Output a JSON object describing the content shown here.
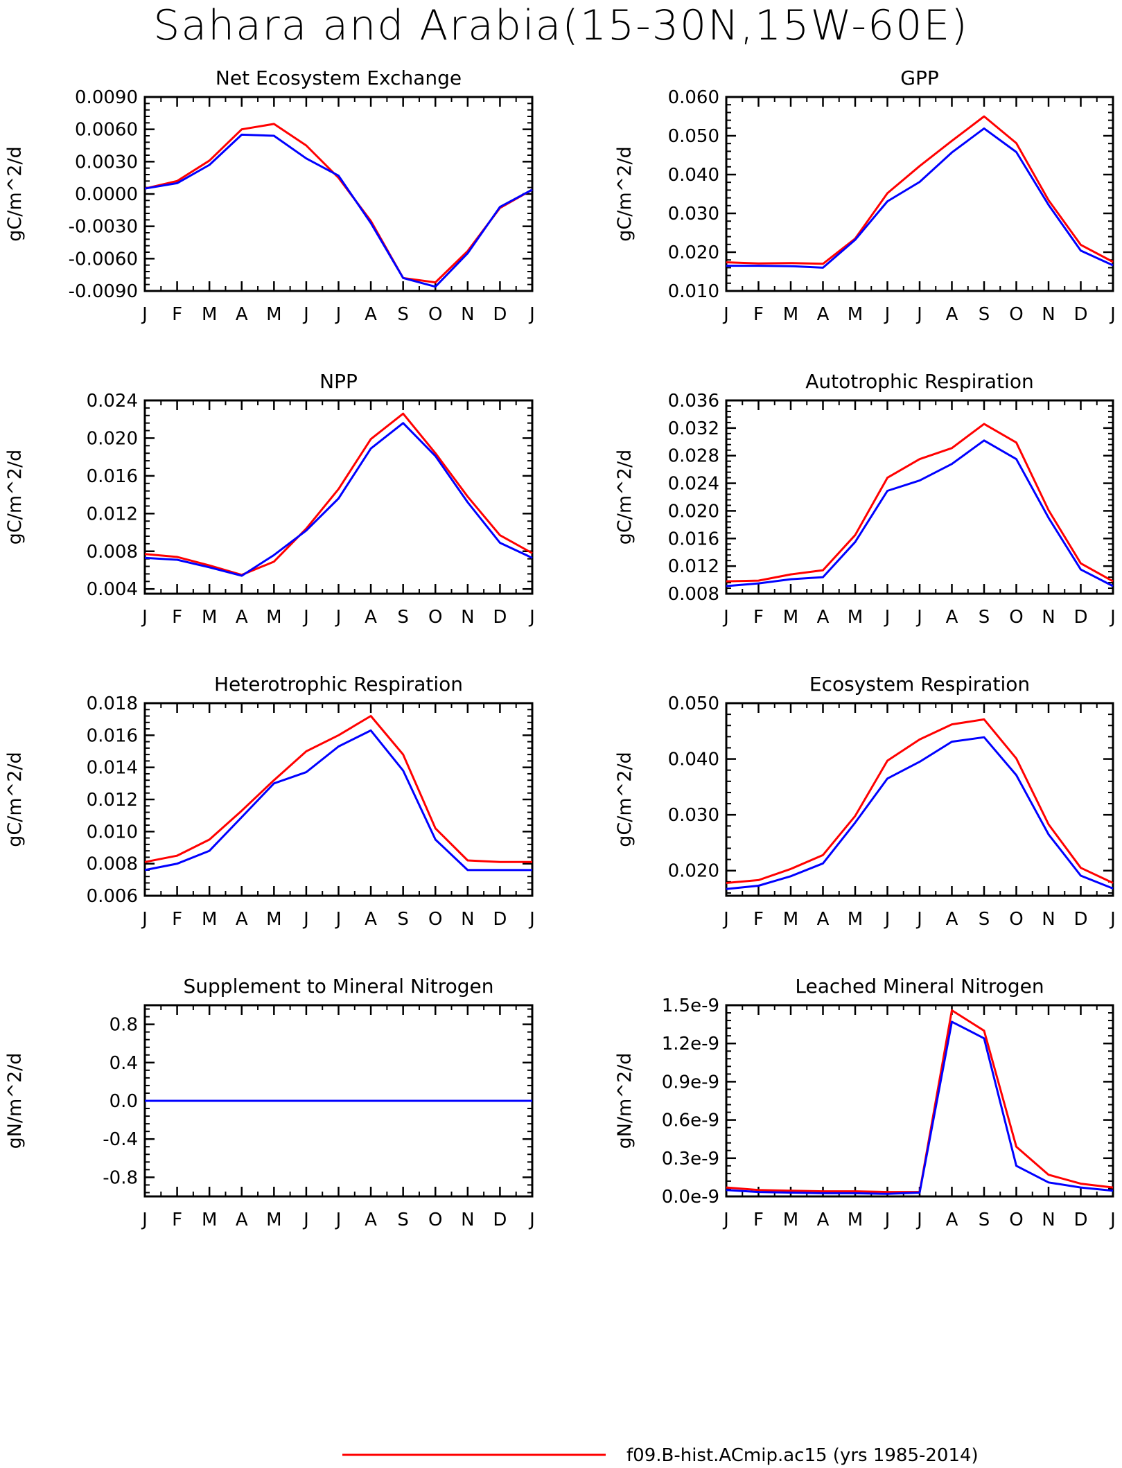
{
  "title": "Sahara and Arabia(15-30N,15W-60E)",
  "months": [
    "J",
    "F",
    "M",
    "A",
    "M",
    "J",
    "J",
    "A",
    "S",
    "O",
    "N",
    "D",
    "J"
  ],
  "legend": [
    {
      "label": "f09.B-hist.ACmip.ac15 (yrs 1985-2014)",
      "color": "#ff0000"
    }
  ],
  "chart_data": [
    {
      "type": "line",
      "title": "Net Ecosystem Exchange",
      "ylabel": "gC/m^2/d",
      "ylim": [
        -0.009,
        0.009
      ],
      "yticks": [
        -0.009,
        -0.006,
        -0.003,
        0.0,
        0.003,
        0.006,
        0.009
      ],
      "ytick_labels": [
        "-0.0090",
        "-0.0060",
        "-0.0030",
        "0.0000",
        "0.0030",
        "0.0060",
        "0.0090"
      ],
      "series": [
        {
          "color": "#ff0000",
          "values": [
            0.0005,
            0.0012,
            0.0031,
            0.006,
            0.0065,
            0.0045,
            0.0015,
            -0.0025,
            -0.0078,
            -0.0082,
            -0.0053,
            -0.0013,
            0.0004
          ]
        },
        {
          "color": "#0000ff",
          "values": [
            0.0005,
            0.001,
            0.0027,
            0.0055,
            0.0054,
            0.0033,
            0.0017,
            -0.0027,
            -0.0078,
            -0.0086,
            -0.0055,
            -0.0012,
            0.0004
          ]
        }
      ]
    },
    {
      "type": "line",
      "title": "GPP",
      "ylabel": "gC/m^2/d",
      "ylim": [
        0.01,
        0.06
      ],
      "yticks": [
        0.01,
        0.02,
        0.03,
        0.04,
        0.05,
        0.06
      ],
      "ytick_labels": [
        "0.010",
        "0.020",
        "0.030",
        "0.040",
        "0.050",
        "0.060"
      ],
      "series": [
        {
          "color": "#ff0000",
          "values": [
            0.0174,
            0.0171,
            0.0172,
            0.017,
            0.0235,
            0.0352,
            0.0422,
            0.0487,
            0.055,
            0.0481,
            0.0334,
            0.0219,
            0.0175
          ]
        },
        {
          "color": "#0000ff",
          "values": [
            0.0165,
            0.0165,
            0.0164,
            0.016,
            0.0232,
            0.0331,
            0.0381,
            0.0457,
            0.0519,
            0.0458,
            0.0322,
            0.0204,
            0.0166
          ]
        }
      ]
    },
    {
      "type": "line",
      "title": "NPP",
      "ylabel": "gC/m^2/d",
      "ylim": [
        0.0035,
        0.024
      ],
      "yticks": [
        0.004,
        0.008,
        0.012,
        0.016,
        0.02,
        0.024
      ],
      "ytick_labels": [
        "0.004",
        "0.008",
        "0.012",
        "0.016",
        "0.020",
        "0.024"
      ],
      "series": [
        {
          "color": "#ff0000",
          "values": [
            0.0077,
            0.0074,
            0.0065,
            0.0055,
            0.0069,
            0.0104,
            0.0146,
            0.0199,
            0.0226,
            0.0184,
            0.0138,
            0.0097,
            0.0078
          ]
        },
        {
          "color": "#0000ff",
          "values": [
            0.0073,
            0.0071,
            0.0063,
            0.0054,
            0.0076,
            0.0102,
            0.0136,
            0.0189,
            0.0216,
            0.0181,
            0.0132,
            0.0089,
            0.0073
          ]
        }
      ]
    },
    {
      "type": "line",
      "title": "Autotrophic Respiration",
      "ylabel": "gC/m^2/d",
      "ylim": [
        0.008,
        0.036
      ],
      "yticks": [
        0.008,
        0.012,
        0.016,
        0.02,
        0.024,
        0.028,
        0.032,
        0.036
      ],
      "ytick_labels": [
        "0.008",
        "0.012",
        "0.016",
        "0.020",
        "0.024",
        "0.028",
        "0.032",
        "0.036"
      ],
      "series": [
        {
          "color": "#ff0000",
          "values": [
            0.0098,
            0.0099,
            0.0108,
            0.0114,
            0.0165,
            0.0248,
            0.0275,
            0.0291,
            0.0326,
            0.0299,
            0.0201,
            0.0124,
            0.0098
          ]
        },
        {
          "color": "#0000ff",
          "values": [
            0.0091,
            0.0095,
            0.0101,
            0.0104,
            0.0155,
            0.0229,
            0.0244,
            0.0268,
            0.0302,
            0.0275,
            0.019,
            0.0115,
            0.0091
          ]
        }
      ]
    },
    {
      "type": "line",
      "title": "Heterotrophic Respiration",
      "ylabel": "gC/m^2/d",
      "ylim": [
        0.006,
        0.018
      ],
      "yticks": [
        0.006,
        0.008,
        0.01,
        0.012,
        0.014,
        0.016,
        0.018
      ],
      "ytick_labels": [
        "0.006",
        "0.008",
        "0.010",
        "0.012",
        "0.014",
        "0.016",
        "0.018"
      ],
      "series": [
        {
          "color": "#ff0000",
          "values": [
            0.0081,
            0.0085,
            0.0095,
            0.0113,
            0.0132,
            0.015,
            0.016,
            0.0172,
            0.0148,
            0.0102,
            0.0082,
            0.0081,
            0.0081
          ]
        },
        {
          "color": "#0000ff",
          "values": [
            0.0076,
            0.008,
            0.0088,
            0.0109,
            0.013,
            0.0137,
            0.0153,
            0.0163,
            0.0138,
            0.0095,
            0.0076,
            0.0076,
            0.0076
          ]
        }
      ]
    },
    {
      "type": "line",
      "title": "Ecosystem Respiration",
      "ylabel": "gC/m^2/d",
      "ylim": [
        0.0155,
        0.05
      ],
      "yticks": [
        0.02,
        0.03,
        0.04,
        0.05
      ],
      "ytick_labels": [
        "0.020",
        "0.030",
        "0.040",
        "0.050"
      ],
      "series": [
        {
          "color": "#ff0000",
          "values": [
            0.0178,
            0.0183,
            0.0203,
            0.0228,
            0.0298,
            0.0397,
            0.0435,
            0.0462,
            0.0471,
            0.0401,
            0.0283,
            0.0205,
            0.0178
          ]
        },
        {
          "color": "#0000ff",
          "values": [
            0.0167,
            0.0173,
            0.019,
            0.0213,
            0.0286,
            0.0365,
            0.0395,
            0.0431,
            0.0439,
            0.0371,
            0.0265,
            0.0191,
            0.0168
          ]
        }
      ]
    },
    {
      "type": "line",
      "title": "Supplement to Mineral Nitrogen",
      "ylabel": "gN/m^2/d",
      "ylim": [
        -1.0,
        1.0
      ],
      "yticks": [
        -0.8,
        -0.4,
        0.0,
        0.4,
        0.8
      ],
      "ytick_labels": [
        "-0.8",
        "-0.4",
        "0.0",
        "0.4",
        "0.8"
      ],
      "series": [
        {
          "color": "#ff0000",
          "values": [
            0,
            0,
            0,
            0,
            0,
            0,
            0,
            0,
            0,
            0,
            0,
            0,
            0
          ]
        },
        {
          "color": "#0000ff",
          "values": [
            0,
            0,
            0,
            0,
            0,
            0,
            0,
            0,
            0,
            0,
            0,
            0,
            0
          ]
        }
      ]
    },
    {
      "type": "line",
      "title": "Leached Mineral Nitrogen",
      "ylabel": "gN/m^2/d",
      "ylim": [
        0.0,
        1.5e-09
      ],
      "yticks": [
        0.0,
        3e-10,
        6e-10,
        9e-10,
        1.2e-09,
        1.5e-09
      ],
      "ytick_labels": [
        "0.0e-9",
        "0.3e-9",
        "0.6e-9",
        "0.9e-9",
        "1.2e-9",
        "1.5e-9"
      ],
      "series": [
        {
          "color": "#ff0000",
          "values": [
            7e-11,
            5e-11,
            4.5e-11,
            4e-11,
            4e-11,
            3.5e-11,
            3.5e-11,
            1.46e-09,
            1.3e-09,
            3.9e-10,
            1.7e-10,
            1e-10,
            7e-11
          ]
        },
        {
          "color": "#0000ff",
          "values": [
            5e-11,
            3.5e-11,
            3e-11,
            2.5e-11,
            2.5e-11,
            2e-11,
            3e-11,
            1.37e-09,
            1.24e-09,
            2.4e-10,
            1.1e-10,
            7e-11,
            4.5e-11
          ]
        }
      ]
    }
  ]
}
